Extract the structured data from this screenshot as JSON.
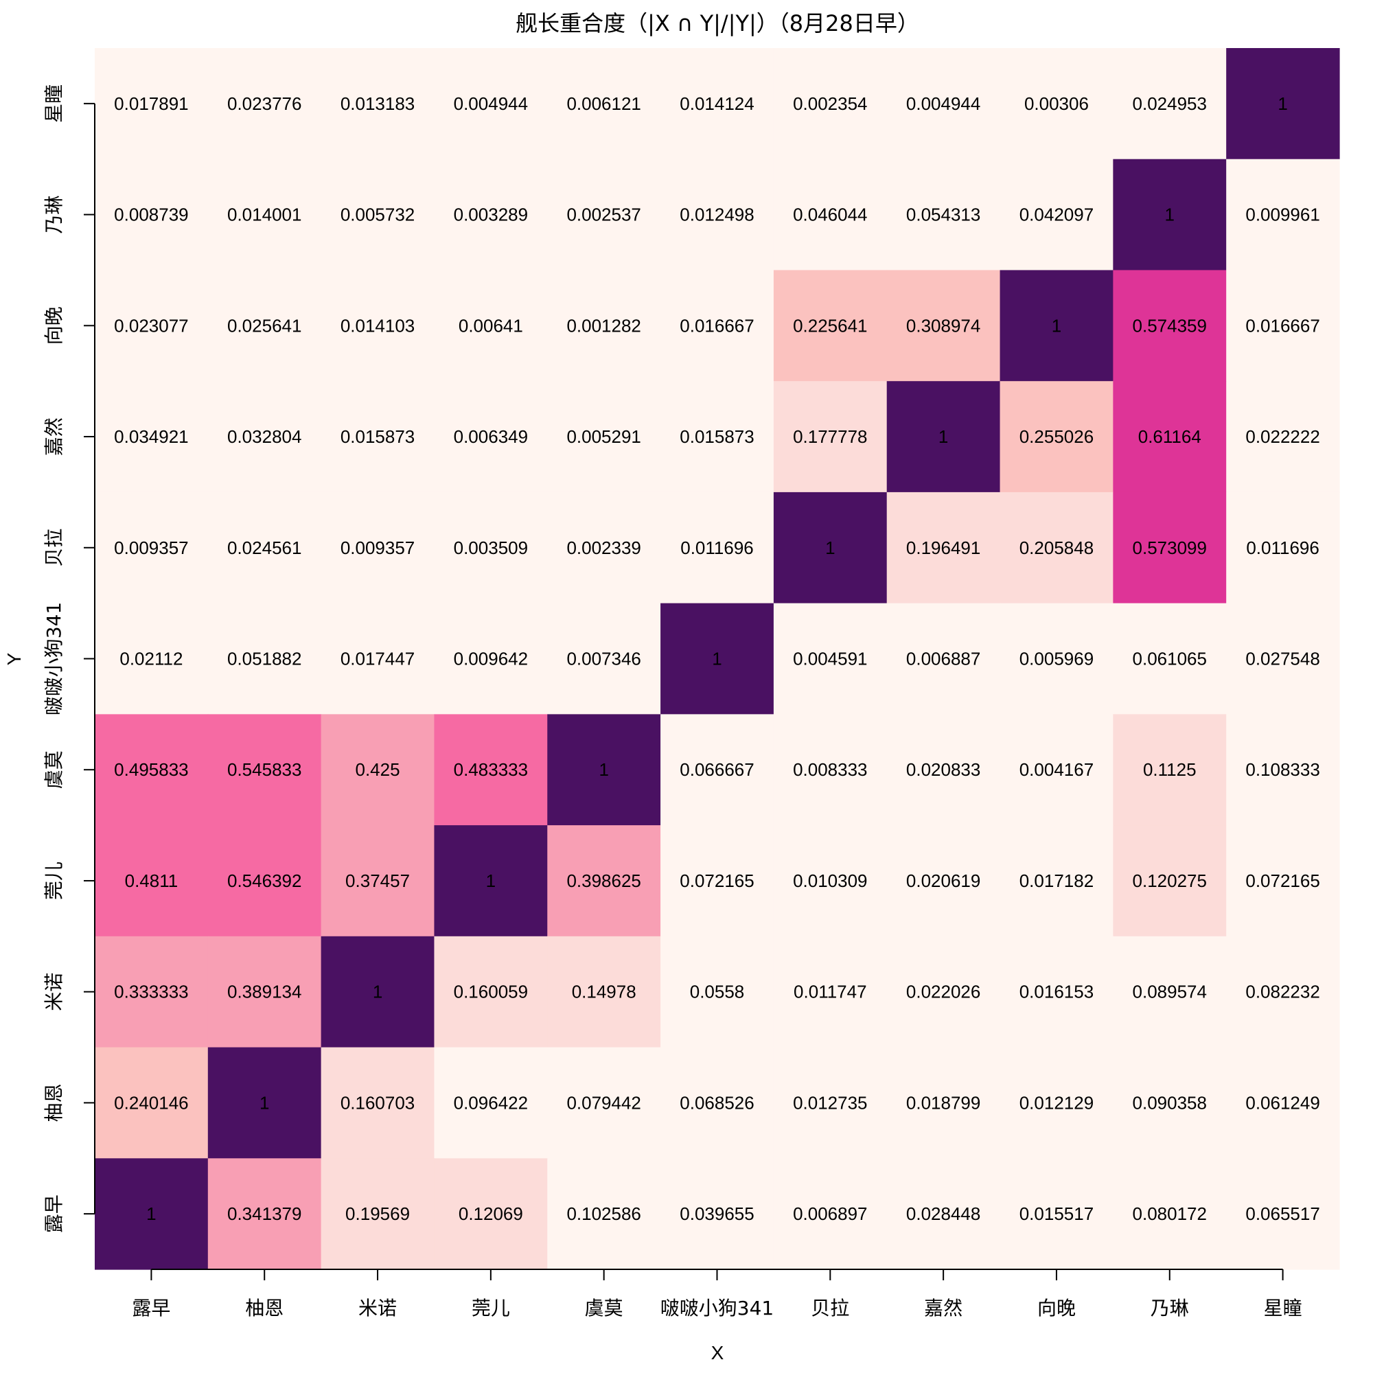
{
  "chart_data": {
    "type": "heatmap",
    "title": "舰长重合度（|X ∩ Y|/|Y|）（8月28日早）",
    "xlabel": "X",
    "ylabel": "Y",
    "x_categories": [
      "露早",
      "柚恩",
      "米诺",
      "莞儿",
      "虞莫",
      "啵啵小狗341",
      "贝拉",
      "嘉然",
      "向晚",
      "乃琳",
      "星瞳"
    ],
    "y_categories_top_to_bottom": [
      "星瞳",
      "乃琳",
      "向晚",
      "嘉然",
      "贝拉",
      "啵啵小狗341",
      "虞莫",
      "莞儿",
      "米诺",
      "柚恩",
      "露早"
    ],
    "value_range": [
      0,
      1
    ],
    "color_scale": [
      "#fff5f0",
      "#fcdcd9",
      "#fbc2bf",
      "#f89fb4",
      "#f66aa3",
      "#de3497",
      "#4a1162"
    ],
    "values": [
      [
        "0.017891",
        "0.023776",
        "0.013183",
        "0.004944",
        "0.006121",
        "0.014124",
        "0.002354",
        "0.004944",
        "0.00306",
        "0.024953",
        "1"
      ],
      [
        "0.008739",
        "0.014001",
        "0.005732",
        "0.003289",
        "0.002537",
        "0.012498",
        "0.046044",
        "0.054313",
        "0.042097",
        "1",
        "0.009961"
      ],
      [
        "0.023077",
        "0.025641",
        "0.014103",
        "0.00641",
        "0.001282",
        "0.016667",
        "0.225641",
        "0.308974",
        "1",
        "0.574359",
        "0.016667"
      ],
      [
        "0.034921",
        "0.032804",
        "0.015873",
        "0.006349",
        "0.005291",
        "0.015873",
        "0.177778",
        "1",
        "0.255026",
        "0.61164",
        "0.022222"
      ],
      [
        "0.009357",
        "0.024561",
        "0.009357",
        "0.003509",
        "0.002339",
        "0.011696",
        "1",
        "0.196491",
        "0.205848",
        "0.573099",
        "0.011696"
      ],
      [
        "0.02112",
        "0.051882",
        "0.017447",
        "0.009642",
        "0.007346",
        "1",
        "0.004591",
        "0.006887",
        "0.005969",
        "0.061065",
        "0.027548"
      ],
      [
        "0.495833",
        "0.545833",
        "0.425",
        "0.483333",
        "1",
        "0.066667",
        "0.008333",
        "0.020833",
        "0.004167",
        "0.1125",
        "0.108333"
      ],
      [
        "0.4811",
        "0.546392",
        "0.37457",
        "1",
        "0.398625",
        "0.072165",
        "0.010309",
        "0.020619",
        "0.017182",
        "0.120275",
        "0.072165"
      ],
      [
        "0.333333",
        "0.389134",
        "1",
        "0.160059",
        "0.14978",
        "0.0558",
        "0.011747",
        "0.022026",
        "0.016153",
        "0.089574",
        "0.082232"
      ],
      [
        "0.240146",
        "1",
        "0.160703",
        "0.096422",
        "0.079442",
        "0.068526",
        "0.012735",
        "0.018799",
        "0.012129",
        "0.090358",
        "0.061249"
      ],
      [
        "1",
        "0.341379",
        "0.19569",
        "0.12069",
        "0.102586",
        "0.039655",
        "0.006897",
        "0.028448",
        "0.015517",
        "0.080172",
        "0.065517"
      ]
    ]
  }
}
